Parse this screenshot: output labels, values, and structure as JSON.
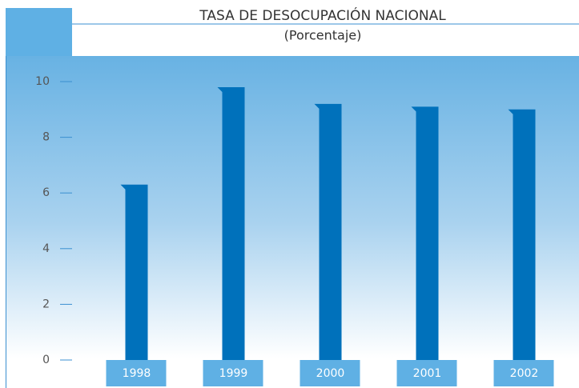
{
  "chart_data": {
    "type": "bar",
    "title": "TASA DE DESOCUPACIÓN NACIONAL",
    "subtitle": "(Porcentaje)",
    "categories": [
      "1998",
      "1999",
      "2000",
      "2001",
      "2002"
    ],
    "values": [
      6.3,
      9.8,
      9.2,
      9.1,
      9.0
    ],
    "color": "#0071bb",
    "ylim": [
      0,
      11
    ],
    "yticks": [
      0,
      2,
      4,
      6,
      8,
      10
    ]
  }
}
